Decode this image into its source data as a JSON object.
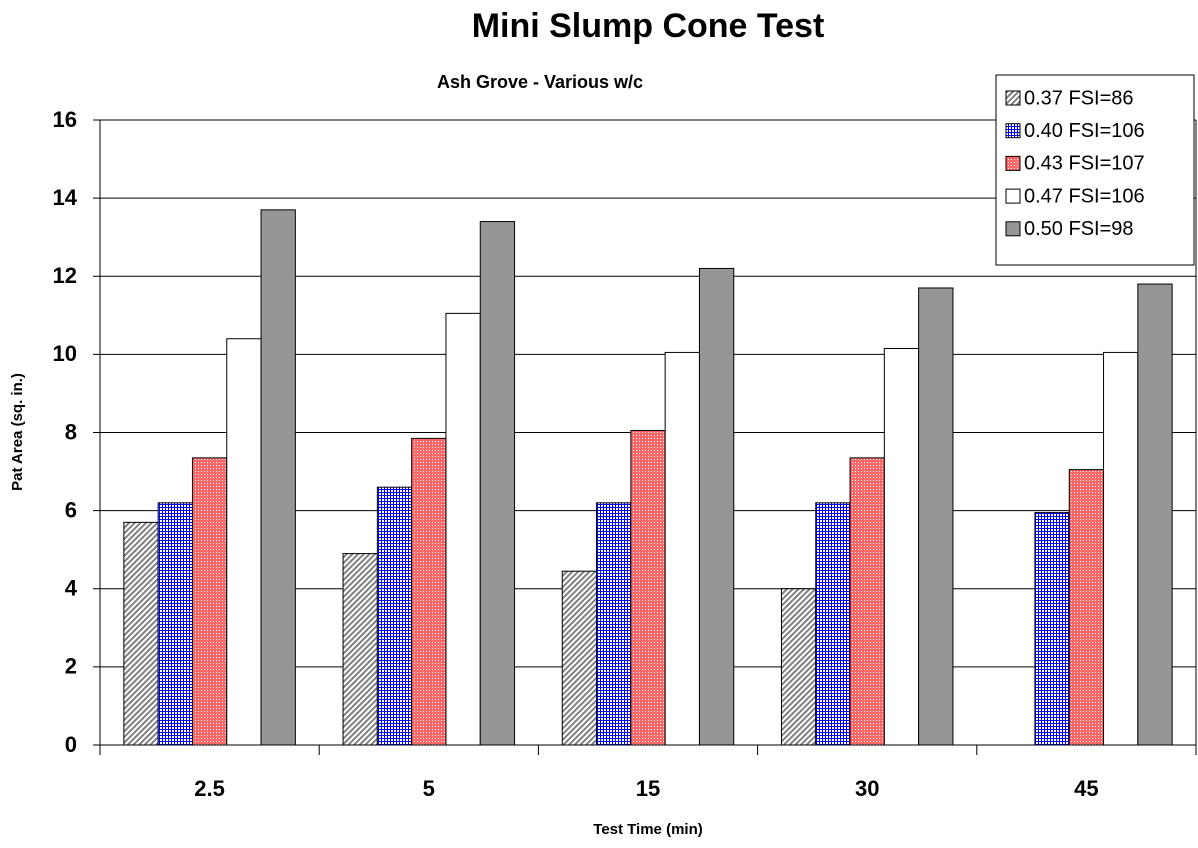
{
  "chart_data": {
    "type": "bar",
    "title": "Mini Slump Cone Test",
    "subtitle": "Ash Grove - Various w/c",
    "x_label": "Test Time (min)",
    "y_label": "Pat Area (sq. in.)",
    "categories": [
      "2.5",
      "5",
      "15",
      "30",
      "45"
    ],
    "series": [
      {
        "name": "0.37 FSI=86",
        "color": "#808080",
        "pattern": "hatch",
        "values": [
          5.7,
          4.9,
          4.45,
          4.0,
          null
        ]
      },
      {
        "name": "0.40 FSI=106",
        "color": "#0000ff",
        "pattern": "grid",
        "values": [
          6.2,
          6.6,
          6.2,
          6.2,
          5.95
        ]
      },
      {
        "name": "0.43 FSI=107",
        "color": "#ff6666",
        "pattern": "dots",
        "values": [
          7.35,
          7.85,
          8.05,
          7.35,
          7.05
        ]
      },
      {
        "name": "0.47 FSI=106",
        "color": "#ffffff",
        "pattern": "solid",
        "values": [
          10.4,
          11.05,
          10.05,
          10.15,
          10.05
        ]
      },
      {
        "name": "0.50 FSI=98",
        "color": "#969696",
        "pattern": "solid",
        "values": [
          13.7,
          13.4,
          12.2,
          11.7,
          11.8
        ]
      }
    ],
    "ylim": [
      0,
      16
    ],
    "yticks": [
      0,
      2,
      4,
      6,
      8,
      10,
      12,
      14,
      16
    ],
    "grid": true,
    "legend": "top-right"
  }
}
